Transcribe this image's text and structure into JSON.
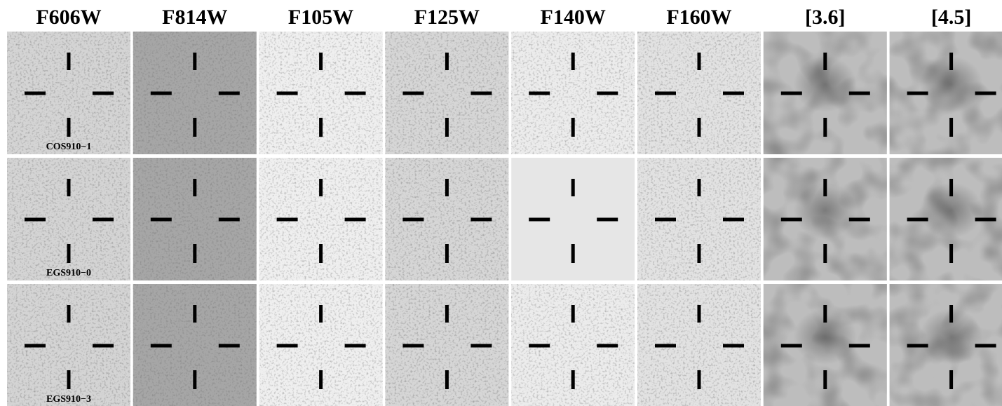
{
  "columns": [
    "F606W",
    "F814W",
    "F105W",
    "F125W",
    "F140W",
    "F160W",
    "[3.6]",
    "[4.5]"
  ],
  "rows": [
    "COS910−1",
    "EGS910−0",
    "EGS910−3"
  ]
}
